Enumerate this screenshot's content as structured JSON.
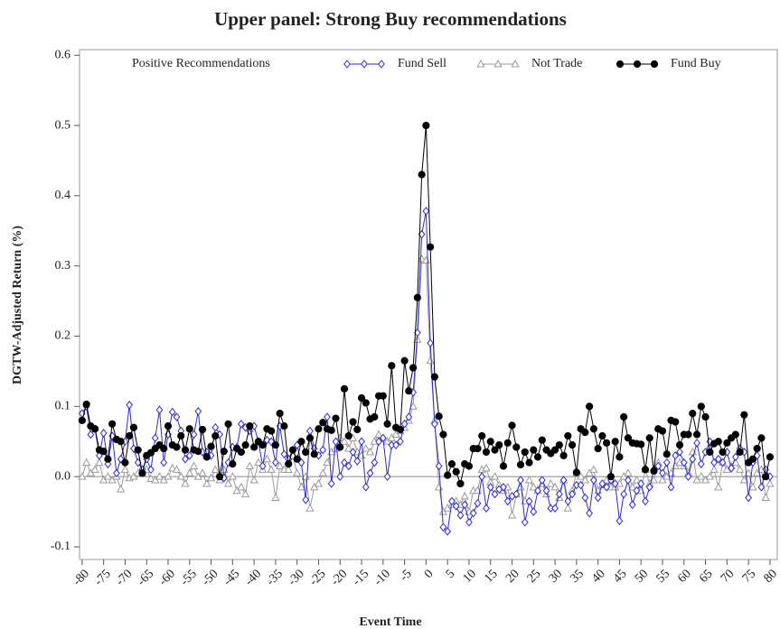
{
  "chart_data": {
    "type": "line",
    "title": "Upper panel: Strong Buy recommendations",
    "x_label": "Event Time",
    "y_label": "DGTW-Adjusted Return (%)",
    "legend_title": "Positive Recommendations",
    "legend": "top",
    "reference_line": 0,
    "xlim": [
      -80.6,
      81.7
    ],
    "ylim": [
      -0.118,
      0.608
    ],
    "xticks": [
      -80,
      -75,
      -70,
      -65,
      -60,
      -55,
      -50,
      -45,
      -40,
      -35,
      -30,
      -25,
      -20,
      -15,
      -10,
      -5,
      0,
      5,
      10,
      15,
      20,
      25,
      30,
      35,
      40,
      45,
      50,
      55,
      60,
      65,
      70,
      75,
      80
    ],
    "yticks": [
      -0.1,
      {
        "value": 0,
        "label": "0.0"
      },
      0.1,
      0.2,
      0.3,
      0.4,
      0.5,
      0.6
    ],
    "x": [
      -80,
      -79,
      -78,
      -77,
      -76,
      -75,
      -74,
      -73,
      -72,
      -71,
      -70,
      -69,
      -68,
      -67,
      -66,
      -65,
      -64,
      -63,
      -62,
      -61,
      -60,
      -59,
      -58,
      -57,
      -56,
      -55,
      -54,
      -53,
      -52,
      -51,
      -50,
      -49,
      -48,
      -47,
      -46,
      -45,
      -44,
      -43,
      -42,
      -41,
      -40,
      -39,
      -38,
      -37,
      -36,
      -35,
      -34,
      -33,
      -32,
      -31,
      -30,
      -29,
      -28,
      -27,
      -26,
      -25,
      -24,
      -23,
      -22,
      -21,
      -20,
      -19,
      -18,
      -17,
      -16,
      -15,
      -14,
      -13,
      -12,
      -11,
      -10,
      -9,
      -8,
      -7,
      -6,
      -5,
      -4,
      -3,
      -2,
      -1,
      0,
      1,
      2,
      3,
      4,
      5,
      6,
      7,
      8,
      9,
      10,
      11,
      12,
      13,
      14,
      15,
      16,
      17,
      18,
      19,
      20,
      21,
      22,
      23,
      24,
      25,
      26,
      27,
      28,
      29,
      30,
      31,
      32,
      33,
      34,
      35,
      36,
      37,
      38,
      39,
      40,
      41,
      42,
      43,
      44,
      45,
      46,
      47,
      48,
      49,
      50,
      51,
      52,
      53,
      54,
      55,
      56,
      57,
      58,
      59,
      60,
      61,
      62,
      63,
      64,
      65,
      66,
      67,
      68,
      69,
      70,
      71,
      72,
      73,
      74,
      75,
      76,
      77,
      78,
      79,
      80
    ],
    "series": [
      {
        "name": "Fund Sell",
        "color": "#2b2bd6",
        "marker": "diamond",
        "values": [
          0.09,
          0.1,
          0.06,
          0.068,
          0.03,
          0.062,
          0.018,
          0.058,
          0.005,
          0.025,
          0.05,
          0.102,
          0.04,
          0.02,
          0.01,
          0.025,
          0.01,
          0.055,
          0.095,
          0.02,
          0.06,
          0.092,
          0.085,
          0.065,
          0.025,
          0.03,
          0.06,
          0.093,
          0.035,
          0.035,
          0.03,
          0.07,
          0.06,
          -0.002,
          0.02,
          0.042,
          0.042,
          0.075,
          0.07,
          0.065,
          0.072,
          0.05,
          0.015,
          0.052,
          0.05,
          0.02,
          0.072,
          0.032,
          0.025,
          0.038,
          0.045,
          0.02,
          -0.033,
          0.065,
          0.04,
          0.03,
          0.038,
          0.085,
          -0.01,
          0.05,
          0.0,
          0.02,
          0.015,
          0.035,
          0.022,
          0.05,
          -0.015,
          0.005,
          0.02,
          0.05,
          0.055,
          0.0,
          0.045,
          0.045,
          0.05,
          0.075,
          0.085,
          0.12,
          0.205,
          0.345,
          0.378,
          0.19,
          0.075,
          0.015,
          -0.072,
          -0.078,
          -0.035,
          -0.042,
          -0.055,
          -0.04,
          -0.065,
          -0.052,
          -0.038,
          0.0,
          -0.045,
          -0.015,
          -0.025,
          -0.018,
          -0.015,
          -0.035,
          -0.028,
          -0.025,
          -0.005,
          -0.065,
          -0.035,
          -0.05,
          -0.02,
          -0.005,
          -0.02,
          -0.045,
          -0.045,
          -0.025,
          -0.005,
          -0.035,
          -0.025,
          -0.012,
          -0.012,
          -0.03,
          -0.052,
          -0.005,
          -0.03,
          -0.01,
          -0.015,
          -0.005,
          -0.01,
          -0.063,
          -0.025,
          -0.005,
          -0.04,
          -0.02,
          -0.01,
          -0.035,
          -0.015,
          0.01,
          0.015,
          0.005,
          0.02,
          -0.015,
          0.03,
          0.035,
          0.02,
          0.0,
          0.025,
          0.048,
          0.018,
          0.035,
          0.05,
          0.02,
          0.025,
          0.02,
          0.035,
          0.012,
          0.028,
          0.04,
          0.035,
          -0.03,
          0.02,
          0.03,
          -0.015,
          0.01,
          0.0
        ]
      },
      {
        "name": "Not Trade",
        "color": "#9a9a9a",
        "marker": "triangle",
        "values": [
          0.0,
          0.02,
          0.005,
          0.01,
          0.02,
          -0.005,
          0.0,
          -0.005,
          0.0,
          -0.018,
          0.01,
          -0.002,
          0.0,
          0.005,
          0.005,
          0.01,
          -0.003,
          -0.005,
          0.0,
          -0.005,
          0.0,
          0.012,
          0.01,
          0.0,
          -0.01,
          0.005,
          0.015,
          0.0,
          0.005,
          -0.01,
          -0.002,
          0.01,
          -0.005,
          0.01,
          -0.01,
          0.0,
          -0.02,
          -0.015,
          -0.025,
          0.015,
          -0.005,
          0.02,
          0.01,
          0.025,
          0.01,
          -0.03,
          0.015,
          0.01,
          0.01,
          0.03,
          0.005,
          -0.015,
          0.0,
          -0.045,
          -0.015,
          -0.01,
          0.005,
          0.02,
          0.035,
          0.04,
          0.055,
          0.05,
          0.04,
          0.055,
          0.035,
          0.03,
          0.04,
          0.035,
          0.05,
          0.06,
          0.055,
          0.05,
          0.055,
          0.06,
          0.065,
          0.07,
          0.08,
          0.1,
          0.195,
          0.31,
          0.308,
          0.165,
          0.08,
          -0.015,
          -0.05,
          -0.045,
          -0.04,
          -0.035,
          -0.04,
          -0.028,
          -0.05,
          -0.02,
          -0.02,
          0.01,
          0.012,
          -0.008,
          0.0,
          -0.012,
          -0.02,
          -0.015,
          -0.055,
          -0.025,
          -0.015,
          -0.035,
          -0.005,
          -0.015,
          -0.02,
          -0.01,
          -0.025,
          -0.01,
          -0.015,
          -0.03,
          -0.005,
          -0.045,
          -0.02,
          0.005,
          0.0,
          -0.005,
          0.005,
          0.01,
          -0.02,
          -0.012,
          -0.005,
          -0.015,
          -0.015,
          -0.01,
          0.0,
          0.005,
          -0.015,
          -0.005,
          -0.02,
          0.01,
          -0.01,
          -0.005,
          0.02,
          -0.005,
          0.0,
          0.005,
          0.015,
          0.02,
          0.015,
          0.005,
          0.035,
          -0.005,
          0.0,
          -0.005,
          0.0,
          0.01,
          -0.015,
          0.02,
          0.01,
          0.015,
          0.02,
          0.01,
          -0.005,
          0.005,
          -0.015,
          0.005,
          0.01,
          -0.03,
          -0.01
        ]
      },
      {
        "name": "Fund Buy",
        "color": "#000000",
        "marker": "circle",
        "values": [
          0.08,
          0.103,
          0.072,
          0.068,
          0.038,
          0.036,
          0.025,
          0.075,
          0.053,
          0.05,
          0.02,
          0.058,
          0.07,
          0.038,
          0.005,
          0.03,
          0.034,
          0.04,
          0.045,
          0.04,
          0.072,
          0.045,
          0.042,
          0.058,
          0.038,
          0.068,
          0.038,
          0.036,
          0.067,
          0.028,
          0.043,
          0.058,
          0.0,
          0.036,
          0.075,
          0.018,
          0.04,
          0.035,
          0.045,
          0.072,
          0.042,
          0.05,
          0.045,
          0.068,
          0.065,
          0.045,
          0.09,
          0.072,
          0.018,
          0.038,
          0.025,
          0.05,
          0.035,
          0.055,
          0.032,
          0.068,
          0.077,
          0.068,
          0.066,
          0.083,
          0.042,
          0.125,
          0.058,
          0.078,
          0.067,
          0.112,
          0.105,
          0.082,
          0.085,
          0.115,
          0.115,
          0.075,
          0.158,
          0.07,
          0.067,
          0.165,
          0.122,
          0.155,
          0.255,
          0.43,
          0.5,
          0.327,
          0.142,
          0.086,
          0.06,
          0.002,
          0.018,
          0.007,
          -0.01,
          0.018,
          0.015,
          0.04,
          0.04,
          0.058,
          0.035,
          0.05,
          0.038,
          0.045,
          0.015,
          0.048,
          0.073,
          0.042,
          0.017,
          0.035,
          0.02,
          0.038,
          0.028,
          0.052,
          0.038,
          0.033,
          0.038,
          0.045,
          0.03,
          0.058,
          0.045,
          0.006,
          0.068,
          0.063,
          0.1,
          0.068,
          0.04,
          0.058,
          0.048,
          0.0,
          0.05,
          0.028,
          0.085,
          0.055,
          0.048,
          0.047,
          0.046,
          0.01,
          0.055,
          0.008,
          0.068,
          0.065,
          0.032,
          0.08,
          0.078,
          0.045,
          0.06,
          0.06,
          0.09,
          0.06,
          0.1,
          0.085,
          0.035,
          0.047,
          0.05,
          0.035,
          0.048,
          0.055,
          0.06,
          0.035,
          0.088,
          0.02,
          0.025,
          0.04,
          0.055,
          0.0,
          0.028
        ]
      }
    ]
  }
}
